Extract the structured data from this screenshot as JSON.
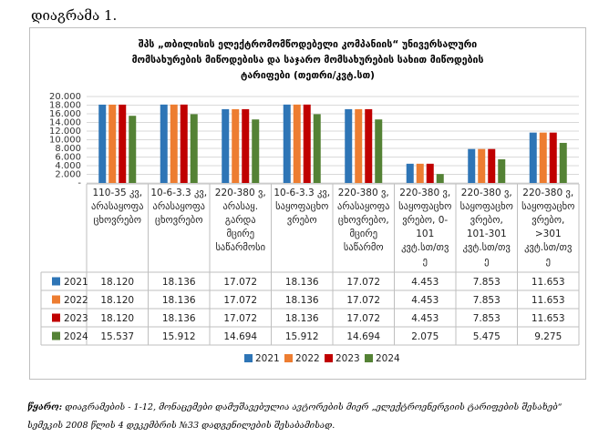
{
  "caption": "დიაგრამა 1.",
  "chart_data": {
    "type": "bar",
    "title": "შპს „თბილისის ელექტრომომწოდებელი კომპანიის“ უნივერსალური\nმომსახურების მიწოდებისა და საჯარო მომსახურების სახით მიწოდების\nტარიფები (თეთრი/კვტ.სთ)",
    "categories": [
      "110-35 კვ, არასაყოფაცხოვრებო",
      "10-6-3.3 კვ, არასაყოფაცხოვრებო",
      "220-380 ვ, არასაყ. გარდა მცირე საწარმოსი",
      "10-6-3.3 კვ, საყოფაცხოვრებო",
      "220-380 ვ, არასაყოფაცხოვრებო, მცირე საწარმო",
      "220-380 ვ, საყოფაცხოვრებო, 0-101 კვტ.სთ/თვე",
      "220-380 ვ, საყოფაცხოვრებო, 101-301 კვტ.სთ/თვე",
      "220-380 ვ, საყოფაცხოვრებო, >301 კვტ.სთ/თვე"
    ],
    "category_lines": [
      [
        "110-35 კვ,",
        "არასაყოფა",
        "ცხოვრებო"
      ],
      [
        "10-6-3.3 კვ,",
        "არასაყოფა",
        "ცხოვრებო"
      ],
      [
        "220-380 ვ,",
        "არასაყ.",
        "გარდა",
        "მცირე",
        "საწარმოსი"
      ],
      [
        "10-6-3.3 კვ,",
        "საყოფაცხო",
        "ვრებო"
      ],
      [
        "220-380 ვ,",
        "არასაყოფა",
        "ცხოვრებო,",
        "მცირე",
        "საწარმო"
      ],
      [
        "220-380 ვ,",
        "საყოფაცხო",
        "ვრებო, 0-",
        "101",
        "კვტ.სთ/თვ",
        "ე"
      ],
      [
        "220-380 ვ,",
        "საყოფაცხო",
        "ვრებო,",
        "101-301",
        "კვტ.სთ/თვ",
        "ე"
      ],
      [
        "220-380 ვ,",
        "საყოფაცხო",
        "ვრებო,",
        ">301",
        "კვტ.სთ/თვ",
        "ე"
      ]
    ],
    "series": [
      {
        "name": "2021",
        "color": "#2e75b6",
        "values": [
          18.12,
          18.136,
          17.072,
          18.136,
          17.072,
          4.453,
          7.853,
          11.653
        ]
      },
      {
        "name": "2022",
        "color": "#ed7d31",
        "values": [
          18.12,
          18.136,
          17.072,
          18.136,
          17.072,
          4.453,
          7.853,
          11.653
        ]
      },
      {
        "name": "2023",
        "color": "#c00000",
        "values": [
          18.12,
          18.136,
          17.072,
          18.136,
          17.072,
          4.453,
          7.853,
          11.653
        ]
      },
      {
        "name": "2024",
        "color": "#548235",
        "values": [
          15.537,
          15.912,
          14.694,
          15.912,
          14.694,
          2.075,
          5.475,
          9.275
        ]
      }
    ],
    "table_values": [
      [
        "18.120",
        "18.136",
        "17.072",
        "18.136",
        "17.072",
        "4.453",
        "7.853",
        "11.653"
      ],
      [
        "18.120",
        "18.136",
        "17.072",
        "18.136",
        "17.072",
        "4.453",
        "7.853",
        "11.653"
      ],
      [
        "18.120",
        "18.136",
        "17.072",
        "18.136",
        "17.072",
        "4.453",
        "7.853",
        "11.653"
      ],
      [
        "15.537",
        "15.912",
        "14.694",
        "15.912",
        "14.694",
        "2.075",
        "5.475",
        "9.275"
      ]
    ],
    "yticks": [
      "-",
      "2.000",
      "4.000",
      "6.000",
      "8.000",
      "10.000",
      "12.000",
      "14.000",
      "16.000",
      "18.000",
      "20.000"
    ],
    "ylim": [
      0,
      20
    ],
    "grid": true,
    "legend_position": "bottom"
  },
  "footnote": {
    "lead": "წყარო:",
    "text": " დიაგრამების - 1-12, მონაცემები დამუშავებულია ავტორების მიერ „ელექტროენერგიის ტარიფების შესახებ“ სემეკის 2008 წლის 4 დეკემბრის №33 დადგენილების შესაბამისად."
  }
}
